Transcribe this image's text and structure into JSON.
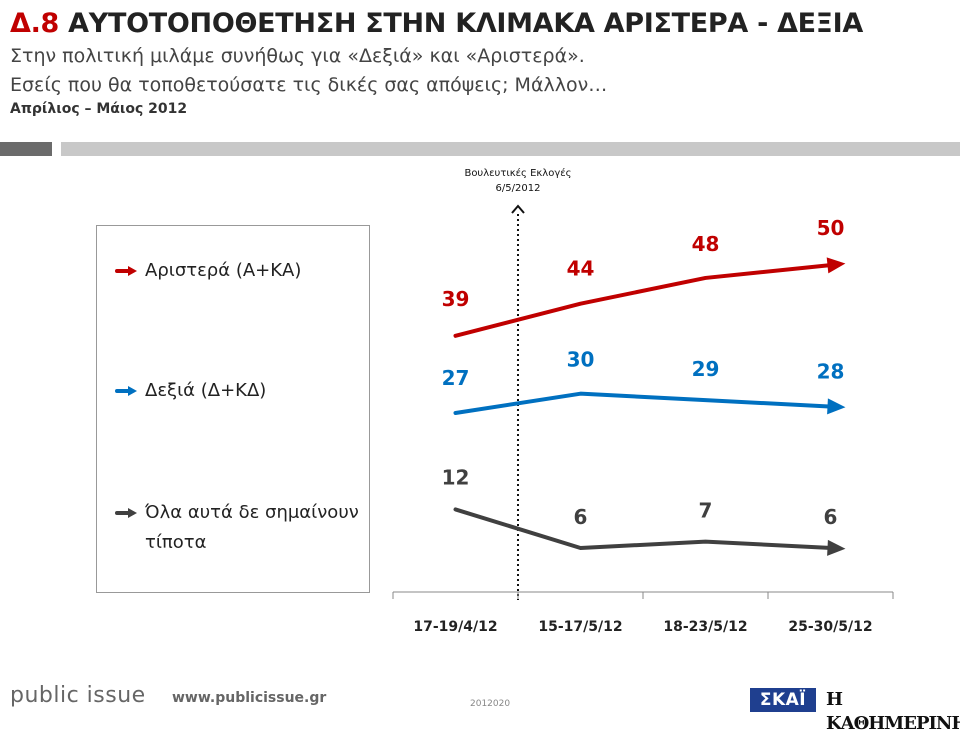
{
  "header": {
    "code": "Δ.8",
    "title": "ΑΥΤΟΤΟΠΟΘΕΤΗΣΗ ΣΤΗΝ ΚΛΙΜΑΚΑ ΑΡΙΣΤΕΡΑ - ΔΕΞΙΑ",
    "subtitle_line1": "Στην πολιτική μιλάμε συνήθως για «Δεξιά» και «Αριστερά».",
    "subtitle_line2": "Εσείς που θα τοποθετούσατε τις δικές σας απόψεις; Μάλλον…",
    "period": "Απρίλιος – Μάιος 2012"
  },
  "annotation": {
    "line1": "Βουλευτικές Εκλογές",
    "line2": "6/5/2012"
  },
  "chart_data": {
    "type": "line",
    "categories": [
      "17-19/4/12",
      "15-17/5/12",
      "18-23/5/12",
      "25-30/5/12"
    ],
    "series": [
      {
        "name": "Αριστερά (Α+ΚΑ)",
        "values": [
          39,
          44,
          48,
          50
        ],
        "color": "#c00000"
      },
      {
        "name": "Δεξιά (Δ+ΚΔ)",
        "values": [
          27,
          30,
          29,
          28
        ],
        "color": "#0070c0"
      },
      {
        "name": "Όλα αυτά δε σημαίνουν τίποτα",
        "values": [
          12,
          6,
          7,
          6
        ],
        "color": "#404040"
      }
    ],
    "xlabel": "",
    "ylabel": "",
    "grid": false,
    "legend_position": "left",
    "marker": {
      "between_categories": [
        0,
        1
      ],
      "label": "Βουλευτικές Εκλογές 6/5/2012"
    }
  },
  "footer": {
    "brand": "public issue",
    "url": "www.publicissue.gr",
    "code": "2012020",
    "logo_skai": "ΣΚΑΪ",
    "logo_kathimerini": "Η ΚΑΘΗΜΕΡΙΝΗ"
  }
}
